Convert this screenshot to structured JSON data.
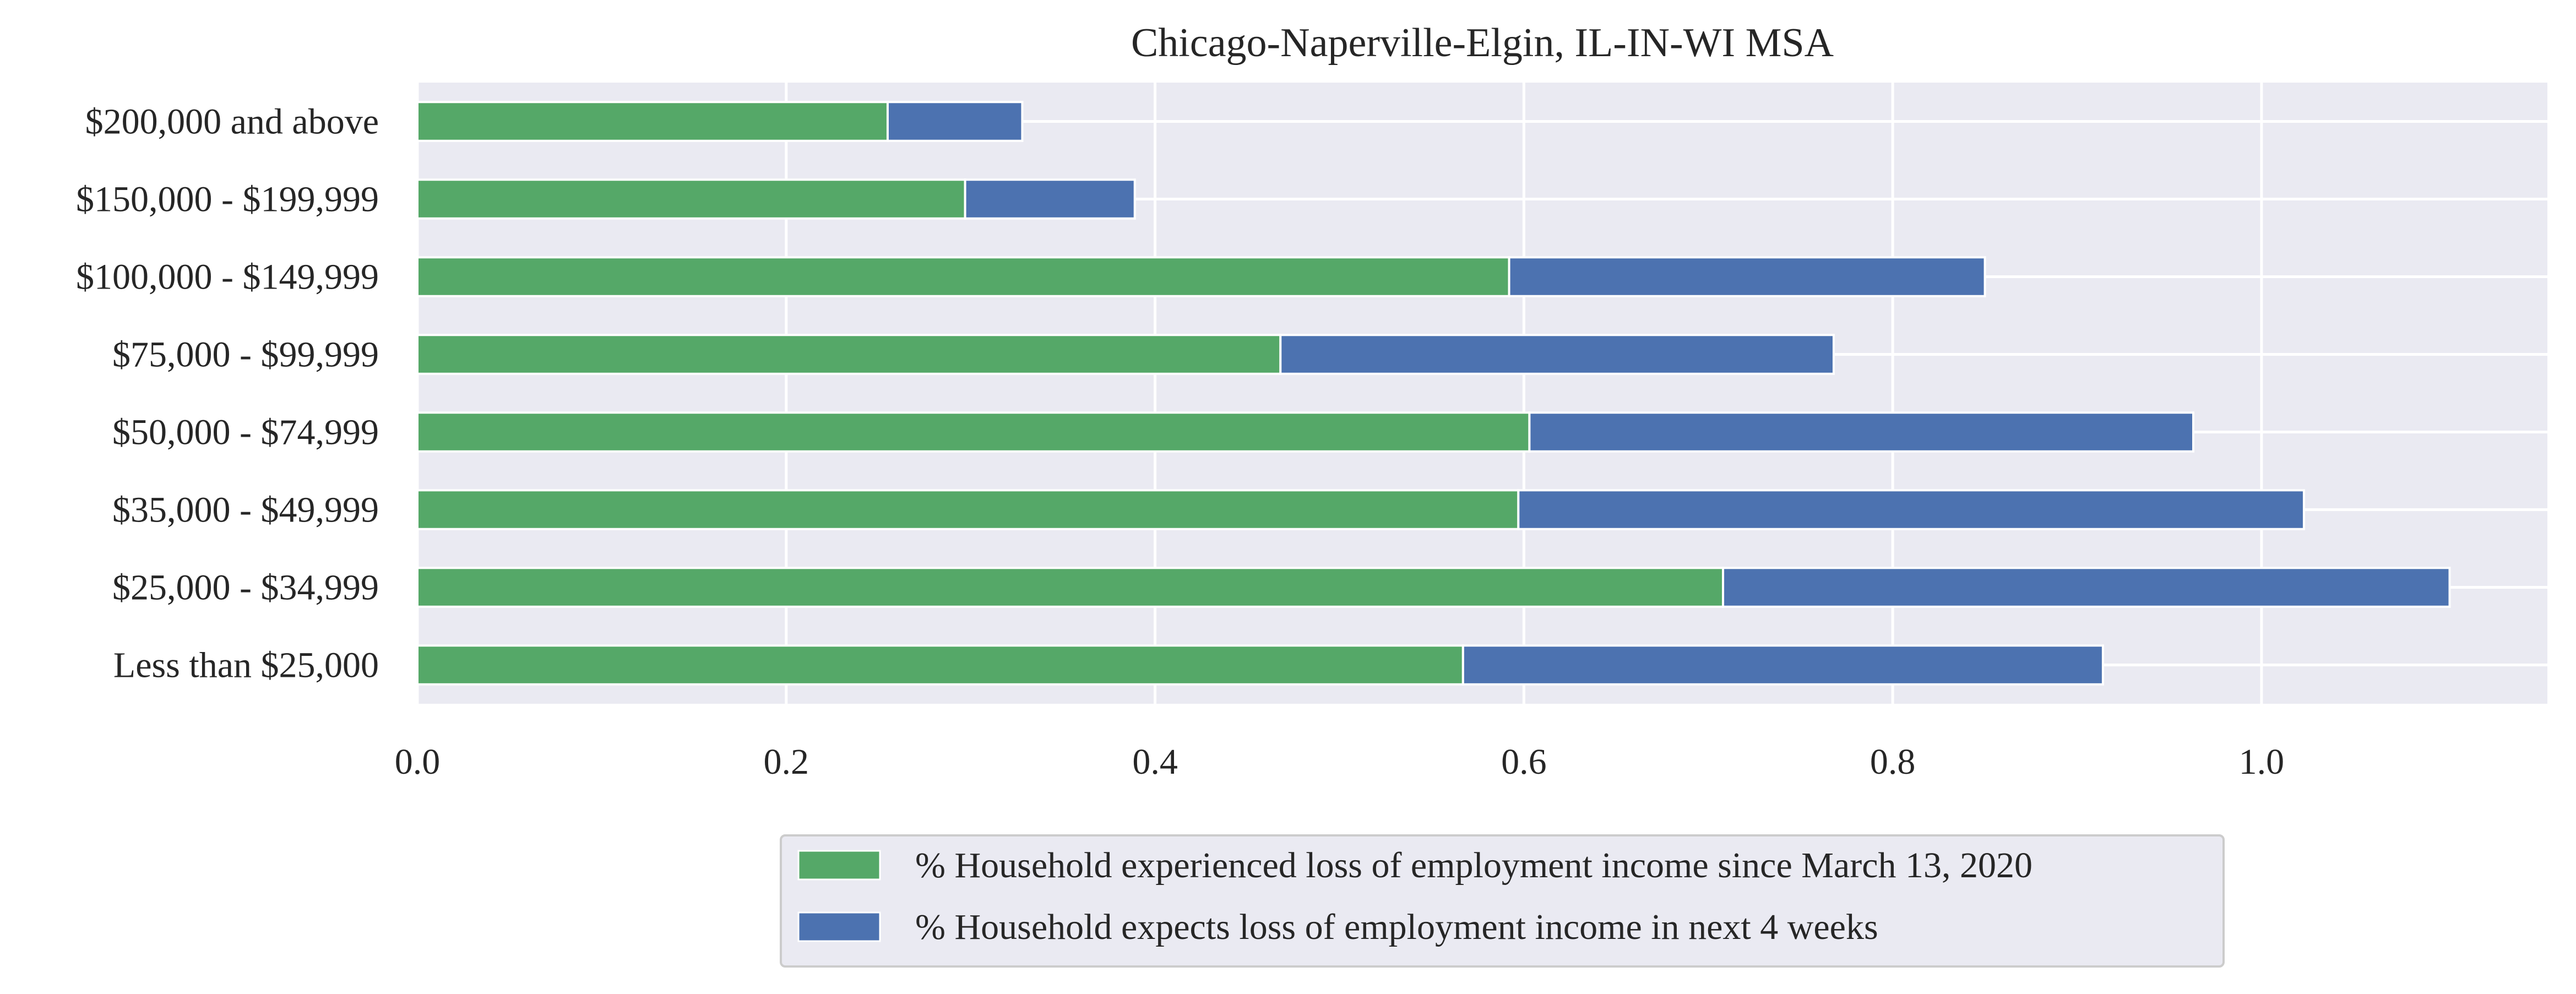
{
  "chart_data": {
    "type": "bar",
    "orientation": "horizontal",
    "stacked": true,
    "title": "Chicago-Naperville-Elgin, IL-IN-WI MSA",
    "xlabel": "",
    "ylabel": "",
    "xlim": [
      0,
      1.155
    ],
    "x_ticks": [
      0.0,
      0.2,
      0.4,
      0.6,
      0.8,
      1.0
    ],
    "x_tick_labels": [
      "0.0",
      "0.2",
      "0.4",
      "0.6",
      "0.8",
      "1.0"
    ],
    "categories": [
      "Less than $25,000",
      "$25,000 - $34,999",
      "$35,000 - $49,999",
      "$50,000 - $74,999",
      "$75,000 - $99,999",
      "$100,000 - $149,999",
      "$150,000 - $199,999",
      "$200,000 and above"
    ],
    "series": [
      {
        "name": "% Household experienced loss of employment income since March 13, 2020",
        "color": "#55a868",
        "values": [
          0.567,
          0.708,
          0.597,
          0.603,
          0.468,
          0.592,
          0.297,
          0.255
        ]
      },
      {
        "name": "% Household expects loss of employment income in next 4 weeks",
        "color": "#4c72b0",
        "values": [
          0.347,
          0.394,
          0.426,
          0.36,
          0.3,
          0.258,
          0.092,
          0.073
        ]
      }
    ],
    "grid": true,
    "legend_position": "bottom-center"
  },
  "colors": {
    "plot_background": "#eaeaf2",
    "gridline": "#ffffff",
    "legend_background": "#eaeaf2",
    "legend_border": "#cccccc"
  }
}
